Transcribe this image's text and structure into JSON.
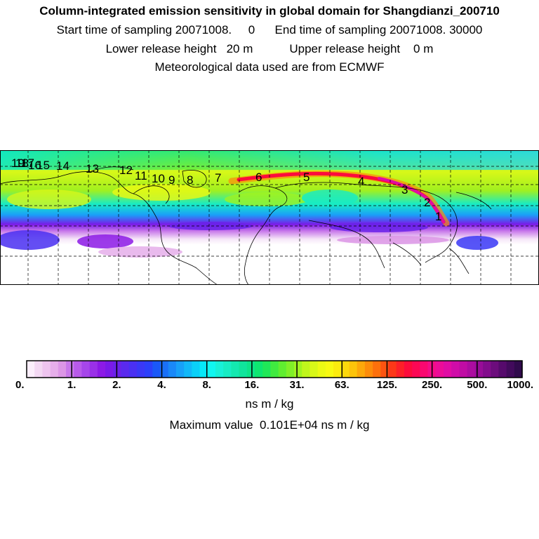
{
  "header": {
    "title": "Column-integrated emission sensitivity in global domain for Shangdianzi_200710",
    "sampling": "Start time of sampling 20071008.     0      End time of sampling 20071008. 30000",
    "release": "Lower release height   20 m           Upper release height    0 m",
    "meteo": "Meteorological data used are from ECMWF"
  },
  "map": {
    "labels": [
      "19",
      "18",
      "17",
      "16",
      "15",
      "14",
      "13",
      "12",
      "11",
      "10",
      "9",
      "8",
      "7",
      "6",
      "5",
      "4",
      "3",
      "2",
      "1"
    ]
  },
  "colorbar": {
    "ticks": [
      "0.",
      "1.",
      "2.",
      "4.",
      "8.",
      "16.",
      "31.",
      "63.",
      "125.",
      "250.",
      "500.",
      "1000."
    ],
    "colors": [
      "#fbeefb",
      "#f3d8f3",
      "#eec4ef",
      "#e6aeea",
      "#dc96e6",
      "#c878ea",
      "#b85aea",
      "#a646ea",
      "#9a30e8",
      "#8c1ae6",
      "#7a1ae8",
      "#6a22ea",
      "#5a2aee",
      "#4a30f2",
      "#3a38f6",
      "#2c40fa",
      "#1a58f8",
      "#1a70f8",
      "#1a88f8",
      "#18a0f8",
      "#12b8f8",
      "#0ad0f8",
      "#06e8f8",
      "#10f6f0",
      "#18f0d8",
      "#18ecc4",
      "#14e8b0",
      "#10e49c",
      "#0ce488",
      "#0ee670",
      "#20e858",
      "#40ea40",
      "#60ee30",
      "#80f028",
      "#a0f420",
      "#c0f61c",
      "#d8f818",
      "#ecfa14",
      "#f8fa12",
      "#fcec0e",
      "#fcd80c",
      "#fcc40a",
      "#fca80a",
      "#fc8c0a",
      "#fc700c",
      "#fc5410",
      "#fc3818",
      "#fc2028",
      "#fc0c3c",
      "#fc0854",
      "#fa0870",
      "#f40c88",
      "#ec0c98",
      "#e00ca4",
      "#d00ca8",
      "#c00ca4",
      "#ac0ca0",
      "#980c98",
      "#820c8c",
      "#6c0c7c",
      "#560a6c",
      "#420a5c",
      "#300a4c"
    ],
    "unit": "ns m / kg",
    "max_label": "Maximum value  0.101E+04 ns m / kg"
  }
}
